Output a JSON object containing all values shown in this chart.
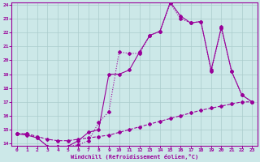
{
  "line1_x": [
    0,
    1,
    2,
    3,
    4,
    5,
    6,
    7,
    8,
    9,
    10,
    11,
    12,
    13,
    14,
    15,
    16,
    17,
    18,
    19,
    20,
    21,
    22,
    23
  ],
  "line1_y": [
    14.7,
    14.7,
    14.4,
    13.8,
    13.8,
    13.8,
    13.9,
    14.2,
    15.5,
    16.3,
    20.6,
    20.5,
    20.5,
    21.8,
    22.1,
    24.1,
    23.0,
    22.7,
    22.8,
    19.2,
    22.3,
    19.2,
    17.5,
    17.0
  ],
  "line2_x": [
    0,
    1,
    2,
    3,
    4,
    5,
    6,
    7,
    8,
    9,
    10,
    11,
    12,
    13,
    14,
    15,
    16,
    17,
    18,
    19,
    20,
    21,
    22,
    23
  ],
  "line2_y": [
    14.7,
    14.6,
    14.4,
    13.8,
    13.8,
    13.8,
    14.2,
    14.8,
    15.0,
    19.0,
    19.0,
    19.3,
    20.6,
    21.8,
    22.1,
    24.2,
    23.2,
    22.7,
    22.8,
    19.3,
    22.4,
    19.2,
    17.5,
    17.0
  ],
  "line3_x": [
    0,
    1,
    2,
    3,
    4,
    5,
    6,
    7,
    8,
    9,
    10,
    11,
    12,
    13,
    14,
    15,
    16,
    17,
    18,
    19,
    20,
    21,
    22,
    23
  ],
  "line3_y": [
    14.7,
    14.7,
    14.5,
    14.3,
    14.2,
    14.2,
    14.3,
    14.4,
    14.5,
    14.6,
    14.8,
    15.0,
    15.2,
    15.4,
    15.6,
    15.8,
    16.0,
    16.2,
    16.4,
    16.55,
    16.7,
    16.85,
    17.0,
    17.0
  ],
  "color": "#990099",
  "bg_color": "#cce8e8",
  "grid_color": "#aacccc",
  "xlabel": "Windchill (Refroidissement éolien,°C)",
  "xlim_min": -0.5,
  "xlim_max": 23.5,
  "ylim_min": 13.85,
  "ylim_max": 24.15,
  "yticks": [
    14,
    15,
    16,
    17,
    18,
    19,
    20,
    21,
    22,
    23,
    24
  ],
  "xticks": [
    0,
    1,
    2,
    3,
    4,
    5,
    6,
    7,
    8,
    9,
    10,
    11,
    12,
    13,
    14,
    15,
    16,
    17,
    18,
    19,
    20,
    21,
    22,
    23
  ]
}
